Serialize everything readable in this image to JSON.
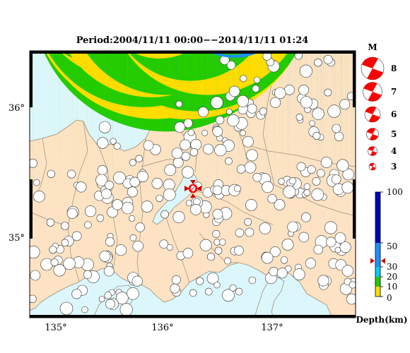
{
  "title": "Period:2004/11/11 00:00−−2014/11/11 01:24",
  "axes": {
    "lon_labels": [
      "135°",
      "136°",
      "137°"
    ],
    "lat_labels": [
      "36°",
      "35°"
    ]
  },
  "magnitude_legend": {
    "heading": "M",
    "entries": [
      "8",
      "7",
      "6",
      "5",
      "4",
      "3"
    ]
  },
  "depth_colorbar": {
    "label": "Depth(km)",
    "ticks": [
      "100",
      "50",
      "30",
      "20",
      "10",
      "0"
    ],
    "marker_depth_km": 35
  },
  "colors": {
    "sea": "#dcf7fb",
    "land": "#fde3c3",
    "border": "#9a8b7e",
    "highlight": "#ff0000",
    "depth_0_10": "#ffdd00",
    "depth_10_20": "#22cc00",
    "depth_20_30": "#00ccff",
    "depth_30_50": "#1e90ff",
    "depth_50_100": "#0000bb"
  },
  "featured_event": {
    "symbol": "Ø",
    "depth_class": "highlight",
    "magnitude": 4
  }
}
